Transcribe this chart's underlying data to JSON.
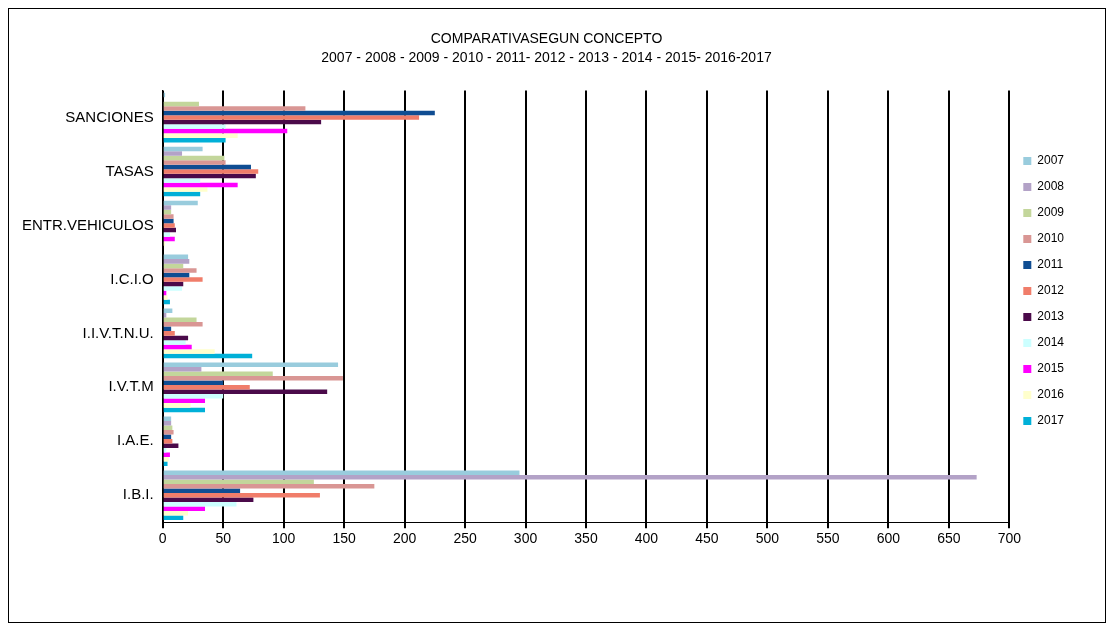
{
  "chart_data": {
    "type": "bar",
    "orientation": "horizontal",
    "title": "COMPARATIVASEGUN CONCEPTO",
    "subtitle": "2007 - 2008 - 2009 - 2010 - 2011- 2012 - 2013 - 2014 - 2015- 2016-2017",
    "categories": [
      "SANCIONES",
      "TASAS",
      "ENTR.VEHICULOS",
      "I.C.I.O",
      "I.I.V.T.N.U.",
      "I.V.T.M",
      "I.A.E.",
      "I.B.I."
    ],
    "series": [
      {
        "name": "2007",
        "color": "#99ccdd",
        "values": [
          2,
          33,
          29,
          21,
          8,
          145,
          7,
          295
        ]
      },
      {
        "name": "2008",
        "color": "#b3a2c7",
        "values": [
          null,
          16,
          7,
          22,
          3,
          32,
          7,
          673
        ]
      },
      {
        "name": "2009",
        "color": "#c3d69b",
        "values": [
          30,
          51,
          7,
          17,
          28,
          91,
          8,
          125
        ]
      },
      {
        "name": "2010",
        "color": "#d99694",
        "values": [
          118,
          52,
          9,
          28,
          33,
          149,
          9,
          175
        ]
      },
      {
        "name": "2011",
        "color": "#0f4d92",
        "values": [
          225,
          73,
          9,
          22,
          7,
          50,
          7,
          64
        ]
      },
      {
        "name": "2012",
        "color": "#f07d6a",
        "values": [
          212,
          79,
          10,
          33,
          10,
          72,
          8,
          130
        ]
      },
      {
        "name": "2013",
        "color": "#4b0a4a",
        "values": [
          131,
          77,
          11,
          17,
          21,
          136,
          13,
          75
        ]
      },
      {
        "name": "2014",
        "color": "#ccffff",
        "values": [
          52,
          31,
          6,
          16,
          19,
          50,
          3,
          61
        ]
      },
      {
        "name": "2015",
        "color": "#ff00ff",
        "values": [
          103,
          62,
          10,
          3,
          24,
          35,
          6,
          35
        ]
      },
      {
        "name": "2016",
        "color": "#ffffcc",
        "values": [
          62,
          37,
          2,
          4,
          43,
          23,
          5,
          21
        ]
      },
      {
        "name": "2017",
        "color": "#00b0d8",
        "values": [
          52,
          31,
          null,
          6,
          74,
          35,
          4,
          17
        ]
      }
    ],
    "xlim": [
      0,
      700
    ],
    "xticks": [
      0,
      50,
      100,
      150,
      200,
      250,
      300,
      350,
      400,
      450,
      500,
      550,
      600,
      650,
      700
    ],
    "grid": "x",
    "legend": "right"
  }
}
